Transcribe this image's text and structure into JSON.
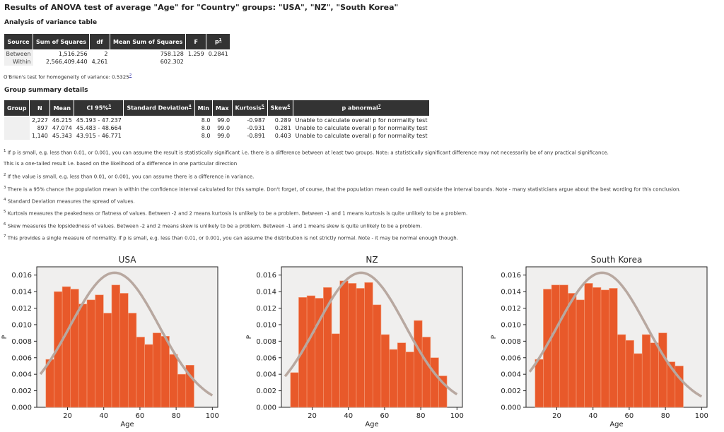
{
  "title": "Results of ANOVA test of average \"Age\" for \"Country\" groups: \"USA\", \"NZ\", \"South Korea\"",
  "anova": {
    "heading": "Analysis of variance table",
    "headers": [
      "Source",
      "Sum of Squares",
      "df",
      "Mean Sum of Squares",
      "F",
      "p"
    ],
    "p_sup": "1",
    "rows": [
      {
        "source": "Between",
        "ss": "1,516.256",
        "df": "2",
        "ms": "758.128",
        "f": "1.259",
        "p": "0.2841"
      },
      {
        "source": "Within",
        "ss": "2,566,409.440",
        "df": "4,261",
        "ms": "602.302",
        "f": "",
        "p": ""
      }
    ]
  },
  "obrien": {
    "text": "O'Brien's test for homogeneity of variance: 0.5325",
    "sup": "2"
  },
  "groups": {
    "heading": "Group summary details",
    "headers": {
      "group": "Group",
      "n": "N",
      "mean": "Mean",
      "ci": "CI 95%",
      "ci_sup": "3",
      "sd": "Standard Deviation",
      "sd_sup": "4",
      "min": "Min",
      "max": "Max",
      "kurt": "Kurtosis",
      "kurt_sup": "5",
      "skew": "Skew",
      "skew_sup": "6",
      "pab": "p abnormal",
      "pab_sup": "7"
    },
    "rows": [
      {
        "group": "",
        "n": "2,227",
        "mean": "46.215",
        "ci": "45.193 - 47.237",
        "sd": "",
        "min": "8.0",
        "max": "99.0",
        "kurt": "-0.987",
        "skew": "0.289",
        "pab": "Unable to calculate overall p for normality test"
      },
      {
        "group": "",
        "n": "897",
        "mean": "47.074",
        "ci": "45.483 - 48.664",
        "sd": "",
        "min": "8.0",
        "max": "99.0",
        "kurt": "-0.931",
        "skew": "0.281",
        "pab": "Unable to calculate overall p for normality test"
      },
      {
        "group": "",
        "n": "1,140",
        "mean": "45.343",
        "ci": "43.915 - 46.771",
        "sd": "",
        "min": "8.0",
        "max": "99.0",
        "kurt": "-0.891",
        "skew": "0.403",
        "pab": "Unable to calculate overall p for normality test"
      }
    ]
  },
  "notes": [
    {
      "sup": "1",
      "text": "If p is small, e.g. less than 0.01, or 0.001, you can assume the result is statistically significant i.e. there is a difference between at least two groups. Note: a statistically significant difference may not necessarily be of any practical significance."
    },
    {
      "sup": "",
      "text": "This is a one-tailed result i.e. based on the likelihood of a difference in one particular direction"
    },
    {
      "sup": "2",
      "text": "If the value is small, e.g. less than 0.01, or 0.001, you can assume there is a difference in variance."
    },
    {
      "sup": "3",
      "text": "There is a 95% chance the population mean is within the confidence interval calculated for this sample. Don't forget, of course, that the population mean could lie well outside the interval bounds. Note - many statisticians argue about the best wording for this conclusion."
    },
    {
      "sup": "4",
      "text": "Standard Deviation measures the spread of values."
    },
    {
      "sup": "5",
      "text": "Kurtosis measures the peakedness or flatness of values. Between -2 and 2 means kurtosis is unlikely to be a problem. Between -1 and 1 means kurtosis is quite unlikely to be a problem."
    },
    {
      "sup": "6",
      "text": "Skew measures the lopsidedness of values. Between -2 and 2 means skew is unlikely to be a problem. Between -1 and 1 means skew is quite unlikely to be a problem."
    },
    {
      "sup": "7",
      "text": "This provides a single measure of normality. If p is small, e.g. less than 0.01, or 0.001, you can assume the distribution is not strictly normal. Note - it may be normal enough though."
    }
  ],
  "colors": {
    "bar": "#e8592a",
    "curve": "#b8a8a0",
    "plot_bg": "#f0efee"
  },
  "chart_data": [
    {
      "type": "bar",
      "title": "USA",
      "xlabel": "Age",
      "ylabel": "P",
      "xlim": [
        3,
        103
      ],
      "ylim": [
        0,
        0.017
      ],
      "xticks": [
        20,
        40,
        60,
        80,
        100
      ],
      "yticks": [
        0,
        0.002,
        0.004,
        0.006,
        0.008,
        0.01,
        0.012,
        0.014,
        0.016
      ],
      "ytick_labels": [
        "0.000",
        "0.002",
        "0.004",
        "0.006",
        "0.008",
        "0.010",
        "0.012",
        "0.014",
        "0.016"
      ],
      "bin_start": 8,
      "bin_width": 4.55,
      "values": [
        0.0058,
        0.014,
        0.0146,
        0.0143,
        0.0125,
        0.013,
        0.0136,
        0.0114,
        0.0148,
        0.0138,
        0.0114,
        0.0085,
        0.0076,
        0.009,
        0.0086,
        0.0064,
        0.004,
        0.0051
      ],
      "curve": {
        "type": "normal",
        "mean": 46,
        "sd": 24.5,
        "x_from": 5,
        "x_to": 100
      }
    },
    {
      "type": "bar",
      "title": "NZ",
      "xlabel": "Age",
      "ylabel": "P",
      "xlim": [
        3,
        103
      ],
      "ylim": [
        0,
        0.017
      ],
      "xticks": [
        20,
        40,
        60,
        80,
        100
      ],
      "yticks": [
        0,
        0.002,
        0.004,
        0.006,
        0.008,
        0.01,
        0.012,
        0.014,
        0.016
      ],
      "ytick_labels": [
        "0.000",
        "0.002",
        "0.004",
        "0.006",
        "0.008",
        "0.010",
        "0.012",
        "0.014",
        "0.016"
      ],
      "bin_start": 8,
      "bin_width": 4.55,
      "values": [
        0.0042,
        0.0133,
        0.0135,
        0.0132,
        0.0145,
        0.0089,
        0.0153,
        0.015,
        0.0144,
        0.0151,
        0.0124,
        0.0088,
        0.007,
        0.0078,
        0.0067,
        0.0105,
        0.0085,
        0.006,
        0.0038
      ],
      "curve": {
        "type": "normal",
        "mean": 47,
        "sd": 24.5,
        "x_from": 5,
        "x_to": 100
      }
    },
    {
      "type": "bar",
      "title": "South Korea",
      "xlabel": "Age",
      "ylabel": "P",
      "xlim": [
        3,
        103
      ],
      "ylim": [
        0,
        0.017
      ],
      "xticks": [
        20,
        40,
        60,
        80,
        100
      ],
      "yticks": [
        0,
        0.002,
        0.004,
        0.006,
        0.008,
        0.01,
        0.012,
        0.014,
        0.016
      ],
      "ytick_labels": [
        "0.000",
        "0.002",
        "0.004",
        "0.006",
        "0.008",
        "0.010",
        "0.012",
        "0.014",
        "0.016"
      ],
      "bin_start": 8,
      "bin_width": 4.55,
      "values": [
        0.0058,
        0.0143,
        0.0148,
        0.0148,
        0.0138,
        0.013,
        0.015,
        0.0145,
        0.0142,
        0.0144,
        0.0088,
        0.0081,
        0.0065,
        0.0088,
        0.0078,
        0.009,
        0.0055,
        0.005
      ],
      "curve": {
        "type": "normal",
        "mean": 45,
        "sd": 24.5,
        "x_from": 5,
        "x_to": 100
      }
    }
  ]
}
